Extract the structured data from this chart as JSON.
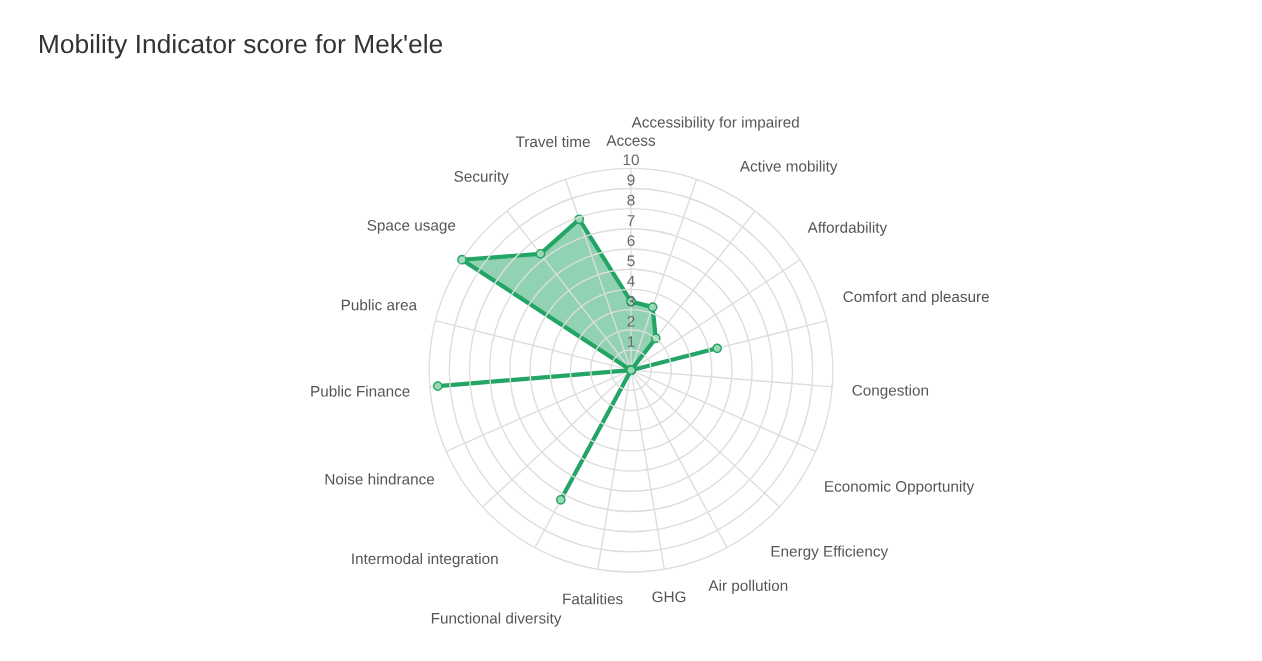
{
  "chart_data": {
    "type": "radar",
    "title": "Mobility Indicator score for Mek'ele",
    "categories": [
      "Access",
      "Accessibility for impaired",
      "Active mobility",
      "Affordability",
      "Comfort and pleasure",
      "Congestion",
      "Economic Opportunity",
      "Energy Efficiency",
      "Air pollution",
      "GHG",
      "Fatalities",
      "Functional diversity",
      "Intermodal integration",
      "Noise hindrance",
      "Public Finance",
      "Public area",
      "Space usage",
      "Security",
      "Travel time"
    ],
    "series": [
      {
        "color": "#22a565",
        "values": [
          3.4,
          3.3,
          2,
          0,
          4.4,
          0,
          0,
          0,
          0,
          0,
          0,
          7.3,
          0,
          0,
          9.6,
          0,
          10,
          7.3,
          7.9
        ]
      }
    ],
    "ylim": [
      0,
      10
    ],
    "yticks": [
      1,
      2,
      3,
      4,
      5,
      6,
      7,
      8,
      9,
      10
    ],
    "grid": true,
    "marker": "circle"
  }
}
